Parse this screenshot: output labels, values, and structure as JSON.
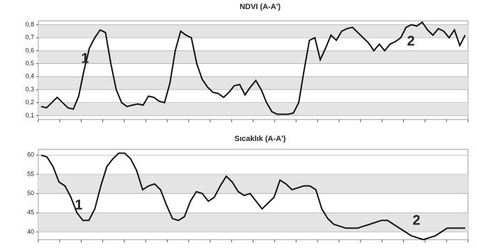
{
  "chart_data": [
    {
      "type": "line",
      "title": "NDVI (A-A')",
      "values": [
        0.17,
        0.16,
        0.2,
        0.24,
        0.2,
        0.16,
        0.15,
        0.25,
        0.45,
        0.62,
        0.7,
        0.76,
        0.74,
        0.5,
        0.3,
        0.2,
        0.17,
        0.18,
        0.19,
        0.18,
        0.25,
        0.24,
        0.21,
        0.2,
        0.35,
        0.6,
        0.75,
        0.72,
        0.7,
        0.5,
        0.38,
        0.32,
        0.28,
        0.27,
        0.24,
        0.28,
        0.33,
        0.34,
        0.26,
        0.32,
        0.37,
        0.3,
        0.2,
        0.13,
        0.11,
        0.11,
        0.11,
        0.12,
        0.2,
        0.45,
        0.68,
        0.7,
        0.53,
        0.62,
        0.72,
        0.68,
        0.75,
        0.77,
        0.78,
        0.74,
        0.7,
        0.66,
        0.6,
        0.65,
        0.6,
        0.65,
        0.67,
        0.7,
        0.78,
        0.8,
        0.79,
        0.82,
        0.76,
        0.72,
        0.77,
        0.75,
        0.7,
        0.76,
        0.64,
        0.72
      ],
      "color": "#111111",
      "ylim": [
        0.07,
        0.83
      ],
      "yticks": [
        {
          "value": 0.1,
          "label": "0,1"
        },
        {
          "value": 0.2,
          "label": "0,2"
        },
        {
          "value": 0.3,
          "label": "0,3"
        },
        {
          "value": 0.4,
          "label": "0,4"
        },
        {
          "value": 0.5,
          "label": "0,5"
        },
        {
          "value": 0.6,
          "label": "0,6"
        },
        {
          "value": 0.7,
          "label": "0,7"
        },
        {
          "value": 0.8,
          "label": "0,8"
        }
      ],
      "grid": true,
      "annotations": [
        "1",
        "2"
      ]
    },
    {
      "type": "line",
      "title": "Sıcaklık (A-A')",
      "values": [
        60,
        59.5,
        57,
        53,
        52,
        49,
        45,
        43,
        43,
        46,
        52,
        57,
        59,
        60.5,
        60.5,
        59,
        56,
        51,
        52,
        52.5,
        51,
        47,
        43.5,
        43,
        44,
        48,
        50.5,
        50,
        48,
        49,
        52,
        54.5,
        53,
        50.5,
        49.5,
        50,
        48,
        46,
        47.5,
        49,
        53.5,
        52.5,
        51,
        51.5,
        52,
        52,
        51,
        46,
        43.5,
        42,
        41.5,
        41,
        41,
        41,
        41.5,
        42,
        42.5,
        43,
        43,
        42,
        41,
        40,
        39,
        38.5,
        38,
        38.5,
        39,
        40,
        41,
        41,
        41,
        41
      ],
      "color": "#111111",
      "ylim": [
        38,
        61.5
      ],
      "yticks": [
        40,
        45,
        50,
        55,
        60
      ],
      "grid": true,
      "annotations": [
        "1",
        "2"
      ]
    }
  ]
}
